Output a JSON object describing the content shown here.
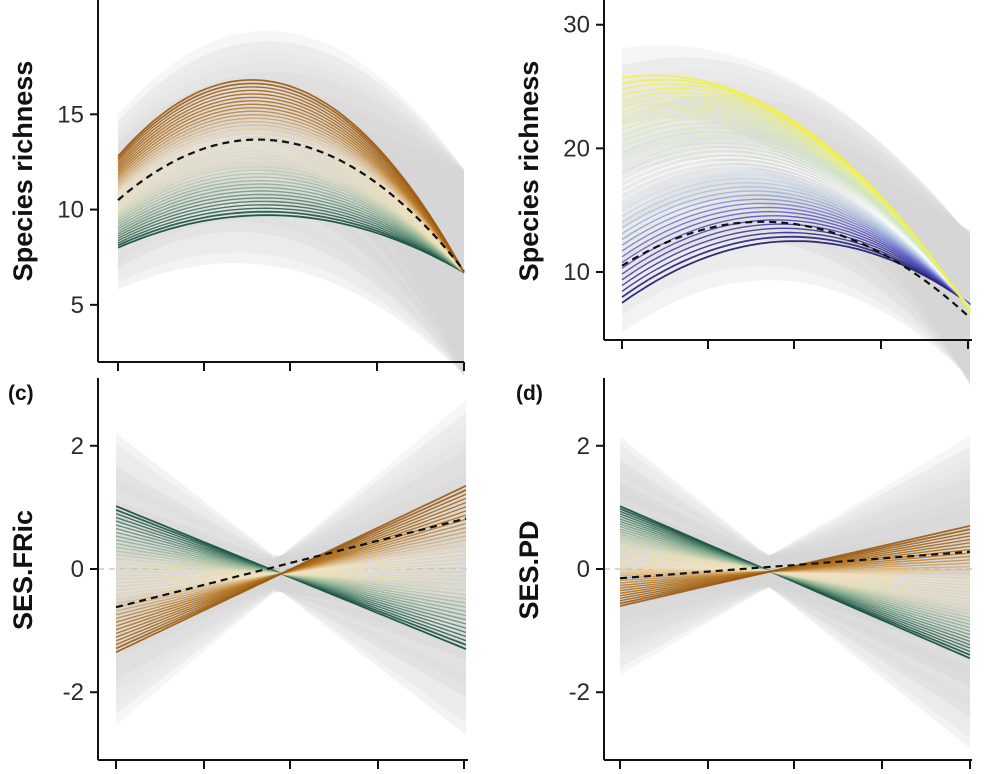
{
  "chart_data": [
    {
      "type": "line",
      "panel": "a",
      "ylabel": "Species richness",
      "yticks": [
        "5",
        "10",
        "15"
      ],
      "ylim": [
        2,
        21
      ],
      "xlim": [
        0,
        1
      ],
      "palette": [
        "#0f4a3a",
        "#7ea88a",
        "#e6dfb8",
        "#f3e2c2",
        "#b8761f",
        "#9a5a12"
      ],
      "mean": {
        "x": [
          0,
          0.5,
          1
        ],
        "y": [
          10.5,
          13.5,
          6.8
        ]
      },
      "series_ends": {
        "x0": 0,
        "xmid": 0.4,
        "x1": 1,
        "y_start_range": [
          8.0,
          12.8
        ],
        "y_mid_range": [
          9.7,
          16.8
        ],
        "y_end": 6.7,
        "count": 40
      }
    },
    {
      "type": "line",
      "panel": "b",
      "ylabel": "Species richness",
      "yticks": [
        "10",
        "20",
        "30"
      ],
      "ylim": [
        4.5,
        32
      ],
      "xlim": [
        0,
        1
      ],
      "palette": [
        "#1c1a6e",
        "#5b57c9",
        "#a9c2e0",
        "#ffffff",
        "#cfe8c4",
        "#e7f08a",
        "#f2f23a"
      ],
      "mean": {
        "x": [
          0,
          0.55,
          1
        ],
        "y": [
          10.5,
          13.6,
          6.3
        ]
      },
      "series_ends": {
        "x0": 0,
        "x1": 1,
        "y_start_range": [
          7.5,
          25.7
        ],
        "y_end": 6.8,
        "count": 40
      }
    },
    {
      "type": "line",
      "panel": "c",
      "panel_tag": "(c)",
      "ylabel": "SES.FRic",
      "yticks": [
        "-2",
        "0",
        "2"
      ],
      "ylim": [
        -3.1,
        3.1
      ],
      "xlim": [
        0,
        1
      ],
      "palette": [
        "#0f4a3a",
        "#7ea88a",
        "#e6dfb8",
        "#f3e2c2",
        "#b8761f",
        "#9a5a12"
      ],
      "mean": {
        "x": [
          0,
          1
        ],
        "y": [
          -0.62,
          0.82
        ]
      },
      "series_ends": {
        "x_cross": 0.45,
        "y_start_range": [
          1.02,
          -1.35
        ],
        "y_end_range": [
          -1.3,
          1.35
        ],
        "count": 40
      }
    },
    {
      "type": "line",
      "panel": "d",
      "panel_tag": "(d)",
      "ylabel": "SES.PD",
      "yticks": [
        "-2",
        "0",
        "2"
      ],
      "ylim": [
        -3.1,
        3.1
      ],
      "xlim": [
        0,
        1
      ],
      "palette": [
        "#0f4a3a",
        "#7ea88a",
        "#e6dfb8",
        "#f3e2c2",
        "#b8761f",
        "#9a5a12"
      ],
      "mean": {
        "x": [
          0,
          1
        ],
        "y": [
          -0.15,
          0.28
        ]
      },
      "series_ends": {
        "x_cross": 0.42,
        "y_start_range": [
          1.02,
          -0.6
        ],
        "y_end_range": [
          -1.45,
          0.7
        ],
        "count": 40
      }
    }
  ]
}
